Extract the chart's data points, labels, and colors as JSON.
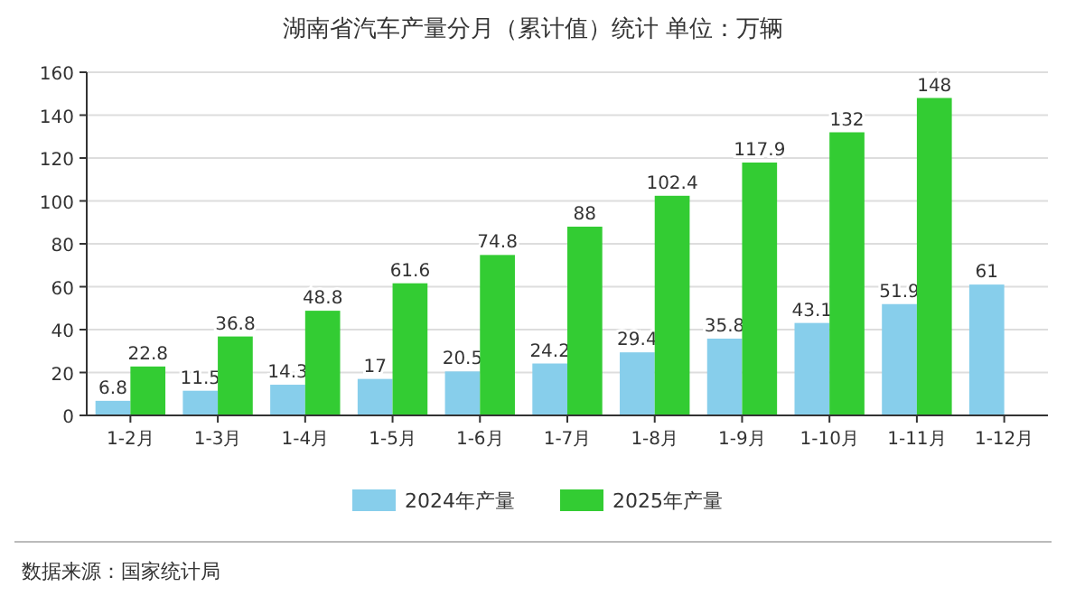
{
  "chart_data": {
    "type": "bar",
    "title": "湖南省汽车产量分月（累计值）统计  单位：万辆",
    "categories": [
      "1-2月",
      "1-3月",
      "1-4月",
      "1-5月",
      "1-6月",
      "1-7月",
      "1-8月",
      "1-9月",
      "1-10月",
      "1-11月",
      "1-12月"
    ],
    "series": [
      {
        "name": "2024年产量",
        "color": "#87ceeb",
        "values": [
          6.8,
          11.5,
          14.3,
          17,
          20.5,
          24.2,
          29.4,
          35.8,
          43.1,
          51.9,
          61
        ]
      },
      {
        "name": "2025年产量",
        "color": "#33cc33",
        "values": [
          22.8,
          36.8,
          48.8,
          61.6,
          74.8,
          88,
          102.4,
          117.9,
          132,
          148,
          null
        ]
      }
    ],
    "ylim": [
      0,
      160
    ],
    "yticks": [
      0,
      20,
      40,
      60,
      80,
      100,
      120,
      140,
      160
    ],
    "grid": "y",
    "legend": "bottom",
    "data_labels": true,
    "annotations": [
      "数据来源：国家统计局"
    ]
  }
}
